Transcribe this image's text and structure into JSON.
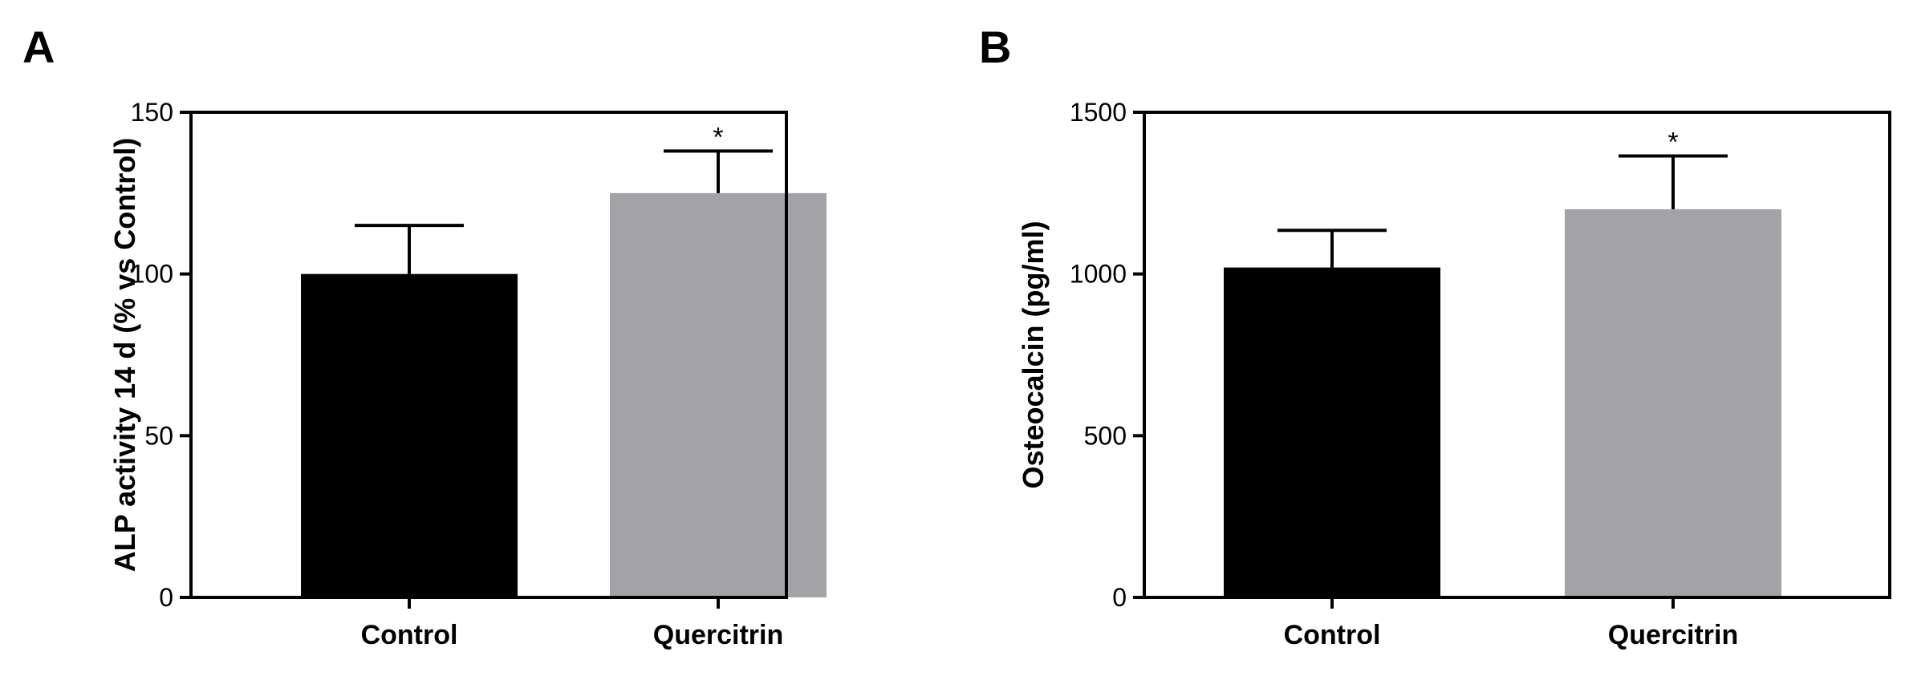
{
  "panels": [
    {
      "letter": "A"
    },
    {
      "letter": "B"
    }
  ],
  "chart_data": [
    {
      "type": "bar",
      "categories": [
        "Control",
        "Quercitrin"
      ],
      "values": [
        100,
        125
      ],
      "errors": [
        15,
        13
      ],
      "significance": [
        "",
        "*"
      ],
      "bar_colors": [
        "#000000",
        "#a3a2a7"
      ],
      "title": "",
      "xlabel": "",
      "ylabel": "ALP activity 14 d (% vs Control)",
      "ylim": [
        0,
        150
      ],
      "yticks": [
        0,
        50,
        100,
        150
      ],
      "grid": false
    },
    {
      "type": "bar",
      "categories": [
        "Control",
        "Quercitrin"
      ],
      "values": [
        1020,
        1200
      ],
      "errors": [
        115,
        165
      ],
      "significance": [
        "",
        "*"
      ],
      "bar_colors": [
        "#000000",
        "#a3a2a7"
      ],
      "title": "",
      "xlabel": "",
      "ylabel": "Osteocalcin (pg/ml)",
      "ylim": [
        0,
        1500
      ],
      "yticks": [
        0,
        500,
        1000,
        1500
      ],
      "grid": false
    }
  ]
}
